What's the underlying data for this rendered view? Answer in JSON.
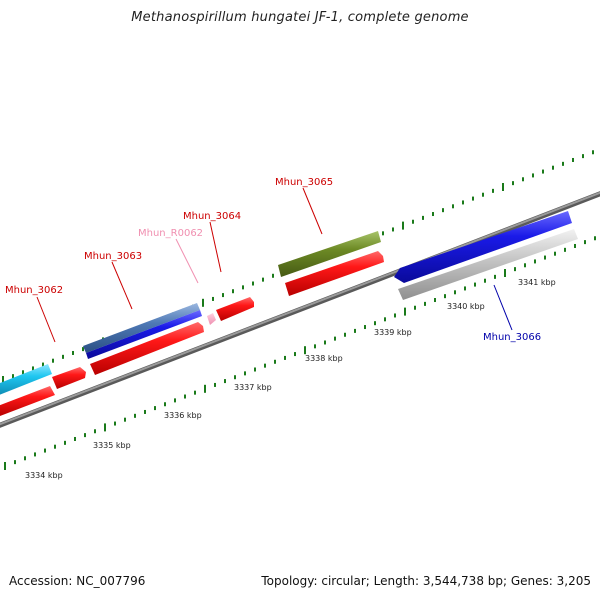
{
  "title": "Methanospirillum hungatei JF-1, complete genome",
  "footer": {
    "accession": "Accession: NC_007796",
    "summary": "Topology: circular; Length: 3,544,738 bp; Genes: 3,205"
  },
  "scale_labels": [
    "3334 kbp",
    "3335 kbp",
    "3336 kbp",
    "3337 kbp",
    "3338 kbp",
    "3339 kbp",
    "3340 kbp",
    "3341 kbp"
  ],
  "genes": [
    {
      "name": "Mhun_3062",
      "label_color": "#cc0000",
      "line_color": "#cc0000"
    },
    {
      "name": "Mhun_3063",
      "label_color": "#cc0000",
      "line_color": "#cc0000"
    },
    {
      "name": "Mhun_R0062",
      "label_color": "#f08fb0",
      "line_color": "#f08fb0"
    },
    {
      "name": "Mhun_3064",
      "label_color": "#cc0000",
      "line_color": "#cc0000"
    },
    {
      "name": "Mhun_3065",
      "label_color": "#cc0000",
      "line_color": "#cc0000"
    },
    {
      "name": "Mhun_3066",
      "label_color": "#0000aa",
      "line_color": "#0000aa"
    }
  ],
  "colors": {
    "backbone": "#7a7a7a",
    "tick": "#1a7a1a",
    "cds_red": "#ff1010",
    "cds_blue": "#1515e0",
    "cds_steel": "#4f79b5",
    "cds_cyan": "#1ec6f0",
    "cds_olive": "#6d8a25",
    "cds_gray": "#c8c8c8",
    "rna_pink": "#f5a5c0"
  }
}
